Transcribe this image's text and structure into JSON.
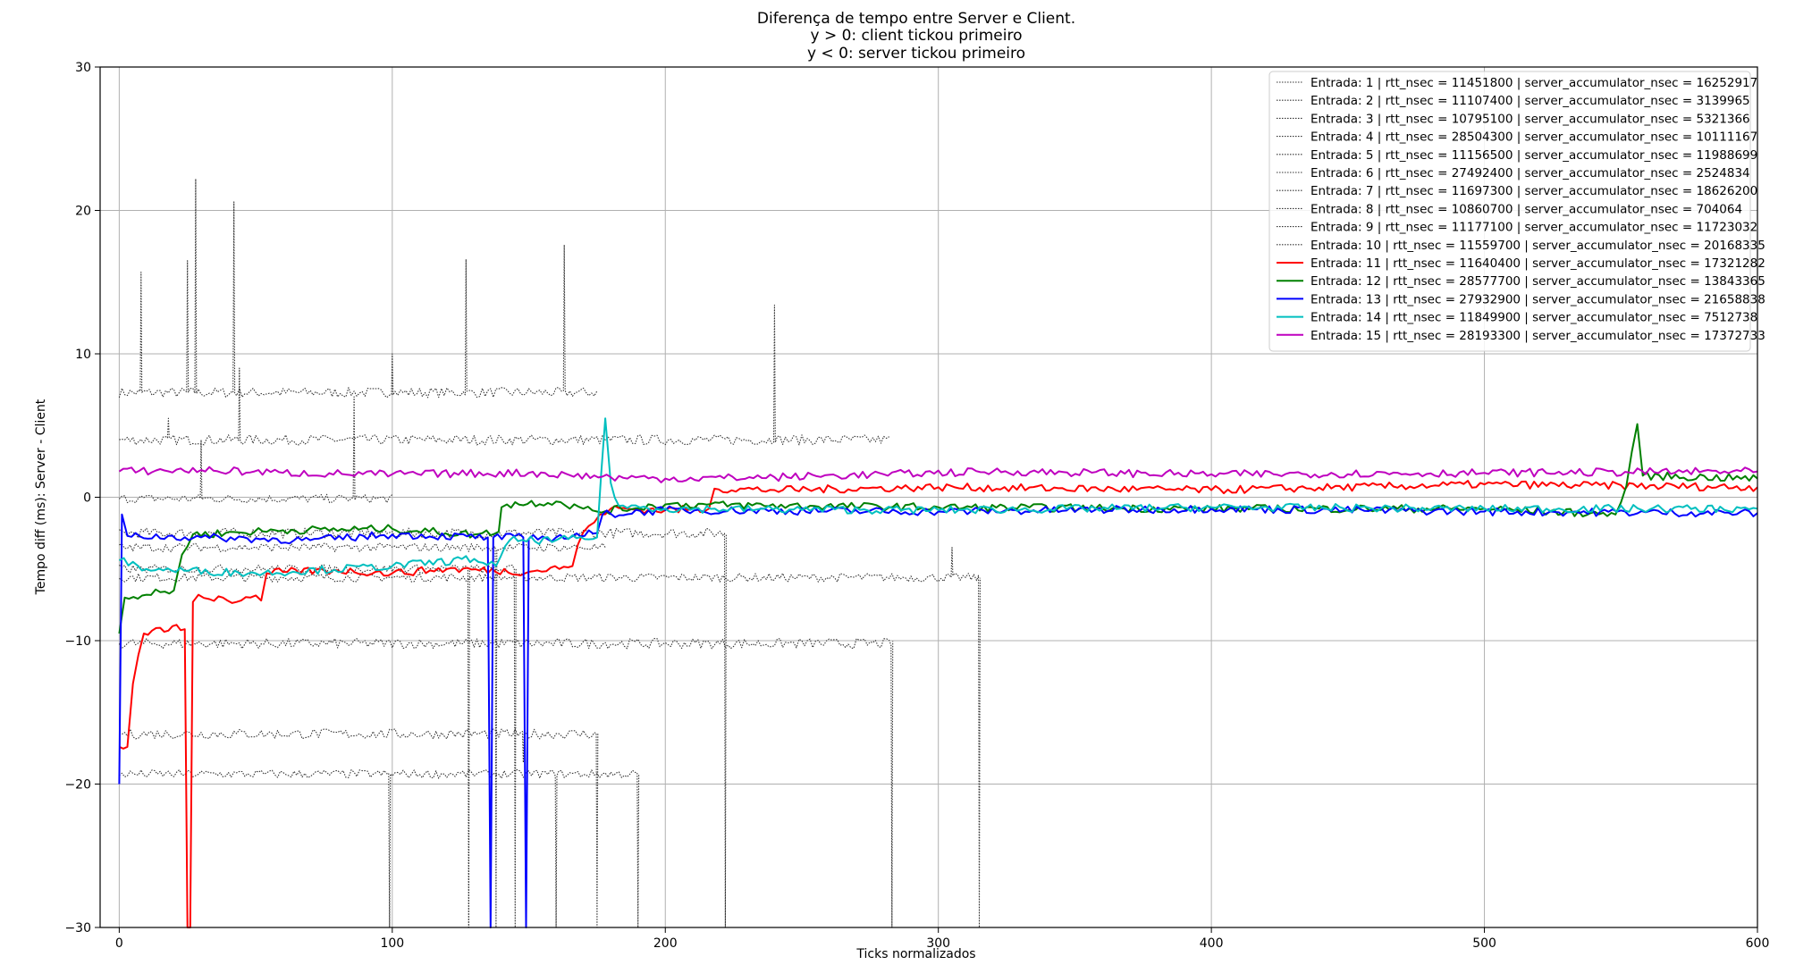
{
  "chart_data": {
    "type": "line",
    "title": [
      "Diferença de tempo entre Server e Client.",
      "y > 0: client tickou primeiro",
      "y < 0: server tickou primeiro"
    ],
    "xlabel": "Ticks normalizados",
    "ylabel": "Tempo diff (ms): Server - Client",
    "xlim": [
      -7,
      600
    ],
    "ylim": [
      -30,
      30
    ],
    "xticks": [
      0,
      100,
      200,
      300,
      400,
      500,
      600
    ],
    "yticks": [
      -30,
      -20,
      -10,
      0,
      10,
      20,
      30
    ],
    "grid": true,
    "legend_position": "top-right",
    "series": [
      {
        "name": "Entrada: 1 | rtt_nsec = 11451800 | server_accumulator_nsec = 16252917",
        "style": "dotted",
        "color": "#333333",
        "base": 7.3,
        "x_end": 175,
        "noise": 0.35,
        "spikes": [
          [
            8,
            15.7
          ],
          [
            25,
            16.5
          ],
          [
            28,
            22.2
          ],
          [
            42,
            20.6
          ],
          [
            100,
            10.0
          ],
          [
            127,
            16.6
          ],
          [
            163,
            17.6
          ]
        ]
      },
      {
        "name": "Entrada: 2 | rtt_nsec = 11107400 | server_accumulator_nsec = 3139965",
        "style": "dotted",
        "color": "#333333",
        "base": 4.0,
        "x_end": 282,
        "noise": 0.35,
        "spikes": [
          [
            18,
            5.5
          ],
          [
            44,
            9.0
          ],
          [
            240,
            13.4
          ]
        ]
      },
      {
        "name": "Entrada: 3 | rtt_nsec = 10795100 | server_accumulator_nsec = 5321366",
        "style": "dotted",
        "color": "#333333",
        "base": -0.1,
        "x_end": 100,
        "noise": 0.3,
        "spikes": [
          [
            30,
            4.0
          ],
          [
            86,
            7.0
          ]
        ]
      },
      {
        "name": "Entrada: 4 | rtt_nsec = 28504300 | server_accumulator_nsec = 10111167",
        "style": "dotted",
        "color": "#333333",
        "base": -2.5,
        "x_end": 222,
        "noise": 0.35,
        "spikes": [
          [
            222,
            -30
          ]
        ]
      },
      {
        "name": "Entrada: 5 | rtt_nsec = 11156500 | server_accumulator_nsec = 11988699",
        "style": "dotted",
        "color": "#333333",
        "base": -5.6,
        "x_end": 315,
        "noise": 0.3,
        "spikes": [
          [
            305,
            -3.5
          ],
          [
            315,
            -30
          ]
        ]
      },
      {
        "name": "Entrada: 6 | rtt_nsec = 27492400 | server_accumulator_nsec = 2524834",
        "style": "dotted",
        "color": "#333333",
        "base": -10.2,
        "x_end": 283,
        "noise": 0.35,
        "spikes": [
          [
            283,
            -30
          ]
        ]
      },
      {
        "name": "Entrada: 7 | rtt_nsec = 11697300 | server_accumulator_nsec = 18626200",
        "style": "dotted",
        "color": "#333333",
        "base": -16.5,
        "x_end": 175,
        "noise": 0.35,
        "spikes": [
          [
            148,
            -18.5
          ],
          [
            175,
            -30
          ]
        ]
      },
      {
        "name": "Entrada: 8 | rtt_nsec = 10860700 | server_accumulator_nsec = 704064",
        "style": "dotted",
        "color": "#333333",
        "base": -19.3,
        "x_end": 190,
        "noise": 0.3,
        "spikes": [
          [
            99,
            -30
          ],
          [
            160,
            -30
          ],
          [
            190,
            -30
          ]
        ]
      },
      {
        "name": "Entrada: 9 | rtt_nsec = 11177100 | server_accumulator_nsec = 11723032",
        "style": "dotted",
        "color": "#333333",
        "base": -3.5,
        "x_end": 178,
        "noise": 0.3,
        "spikes": [
          [
            138,
            -30
          ]
        ]
      },
      {
        "name": "Entrada: 10 | rtt_nsec = 11559700 | server_accumulator_nsec = 20168335",
        "style": "dotted",
        "color": "#333333",
        "base": -5.0,
        "x_end": 145,
        "noise": 0.3,
        "spikes": [
          [
            128,
            -30
          ],
          [
            145,
            -30
          ]
        ]
      },
      {
        "name": "Entrada: 11 | rtt_nsec = 11640400 | server_accumulator_nsec = 17321282",
        "style": "solid",
        "color": "#ff0000",
        "points": [
          [
            0,
            -17.4
          ],
          [
            3,
            -17.4
          ],
          [
            5,
            -13
          ],
          [
            7,
            -11
          ],
          [
            9,
            -9.5
          ],
          [
            12,
            -9.3
          ],
          [
            15,
            -9.1
          ],
          [
            18,
            -9.3
          ],
          [
            21,
            -8.9
          ],
          [
            24,
            -9.2
          ],
          [
            25,
            -30
          ],
          [
            26,
            -30
          ],
          [
            27,
            -7.3
          ],
          [
            29,
            -6.8
          ],
          [
            33,
            -7.1
          ],
          [
            38,
            -7.0
          ],
          [
            43,
            -7.3
          ],
          [
            48,
            -7.0
          ],
          [
            52,
            -7.2
          ],
          [
            54,
            -5.3
          ],
          [
            60,
            -5.2
          ],
          [
            80,
            -5.1
          ],
          [
            100,
            -5.3
          ],
          [
            120,
            -5.0
          ],
          [
            150,
            -5.2
          ],
          [
            166,
            -4.8
          ],
          [
            168,
            -3.3
          ],
          [
            172,
            -2.0
          ],
          [
            176,
            -1.2
          ],
          [
            180,
            -0.8
          ],
          [
            200,
            -0.9
          ],
          [
            216,
            -0.8
          ],
          [
            218,
            0.6
          ],
          [
            240,
            0.5
          ],
          [
            300,
            0.7
          ],
          [
            400,
            0.5
          ],
          [
            500,
            0.9
          ],
          [
            600,
            0.7
          ]
        ]
      },
      {
        "name": "Entrada: 12 | rtt_nsec = 28577700 | server_accumulator_nsec = 13843365",
        "style": "solid",
        "color": "#008000",
        "points": [
          [
            0,
            -9.5
          ],
          [
            2,
            -7.0
          ],
          [
            10,
            -6.8
          ],
          [
            20,
            -6.5
          ],
          [
            23,
            -4.0
          ],
          [
            27,
            -2.6
          ],
          [
            60,
            -2.3
          ],
          [
            100,
            -2.2
          ],
          [
            130,
            -2.6
          ],
          [
            139,
            -2.4
          ],
          [
            140,
            -0.7
          ],
          [
            142,
            -0.5
          ],
          [
            160,
            -0.3
          ],
          [
            170,
            -0.8
          ],
          [
            175,
            -1.0
          ],
          [
            200,
            -0.5
          ],
          [
            300,
            -0.7
          ],
          [
            400,
            -0.8
          ],
          [
            500,
            -0.8
          ],
          [
            548,
            -1.2
          ],
          [
            552,
            0.8
          ],
          [
            556,
            5.1
          ],
          [
            558,
            1.5
          ],
          [
            600,
            1.3
          ]
        ]
      },
      {
        "name": "Entrada: 13 | rtt_nsec = 27932900 | server_accumulator_nsec = 21658838",
        "style": "solid",
        "color": "#0000ff",
        "points": [
          [
            0,
            -20
          ],
          [
            1,
            -1.2
          ],
          [
            3,
            -2.7
          ],
          [
            30,
            -2.8
          ],
          [
            70,
            -3.0
          ],
          [
            100,
            -2.6
          ],
          [
            135,
            -2.8
          ],
          [
            136,
            -30
          ],
          [
            137,
            -2.8
          ],
          [
            148,
            -2.8
          ],
          [
            149,
            -30
          ],
          [
            150,
            -2.9
          ],
          [
            160,
            -2.8
          ],
          [
            175,
            -2.5
          ],
          [
            177,
            -1.2
          ],
          [
            200,
            -0.9
          ],
          [
            300,
            -1.0
          ],
          [
            400,
            -0.8
          ],
          [
            500,
            -1.0
          ],
          [
            600,
            -1.1
          ]
        ]
      },
      {
        "name": "Entrada: 14 | rtt_nsec = 11849900 | server_accumulator_nsec = 7512738",
        "style": "solid",
        "color": "#00bfbf",
        "points": [
          [
            0,
            -4.4
          ],
          [
            10,
            -5.0
          ],
          [
            50,
            -5.3
          ],
          [
            100,
            -4.8
          ],
          [
            130,
            -4.3
          ],
          [
            138,
            -4.8
          ],
          [
            143,
            -3.0
          ],
          [
            160,
            -3.0
          ],
          [
            175,
            -2.8
          ],
          [
            178,
            5.5
          ],
          [
            180,
            1.0
          ],
          [
            183,
            -0.6
          ],
          [
            200,
            -0.8
          ],
          [
            300,
            -0.9
          ],
          [
            400,
            -0.7
          ],
          [
            500,
            -0.8
          ],
          [
            600,
            -0.8
          ]
        ]
      },
      {
        "name": "Entrada: 15 | rtt_nsec = 28193300 | server_accumulator_nsec = 17372733",
        "style": "solid",
        "color": "#bf00bf",
        "points": [
          [
            0,
            1.8
          ],
          [
            30,
            1.9
          ],
          [
            60,
            1.7
          ],
          [
            100,
            1.6
          ],
          [
            150,
            1.7
          ],
          [
            180,
            1.4
          ],
          [
            200,
            1.3
          ],
          [
            240,
            1.4
          ],
          [
            280,
            1.6
          ],
          [
            320,
            1.8
          ],
          [
            400,
            1.6
          ],
          [
            500,
            1.7
          ],
          [
            600,
            1.8
          ]
        ]
      }
    ]
  }
}
